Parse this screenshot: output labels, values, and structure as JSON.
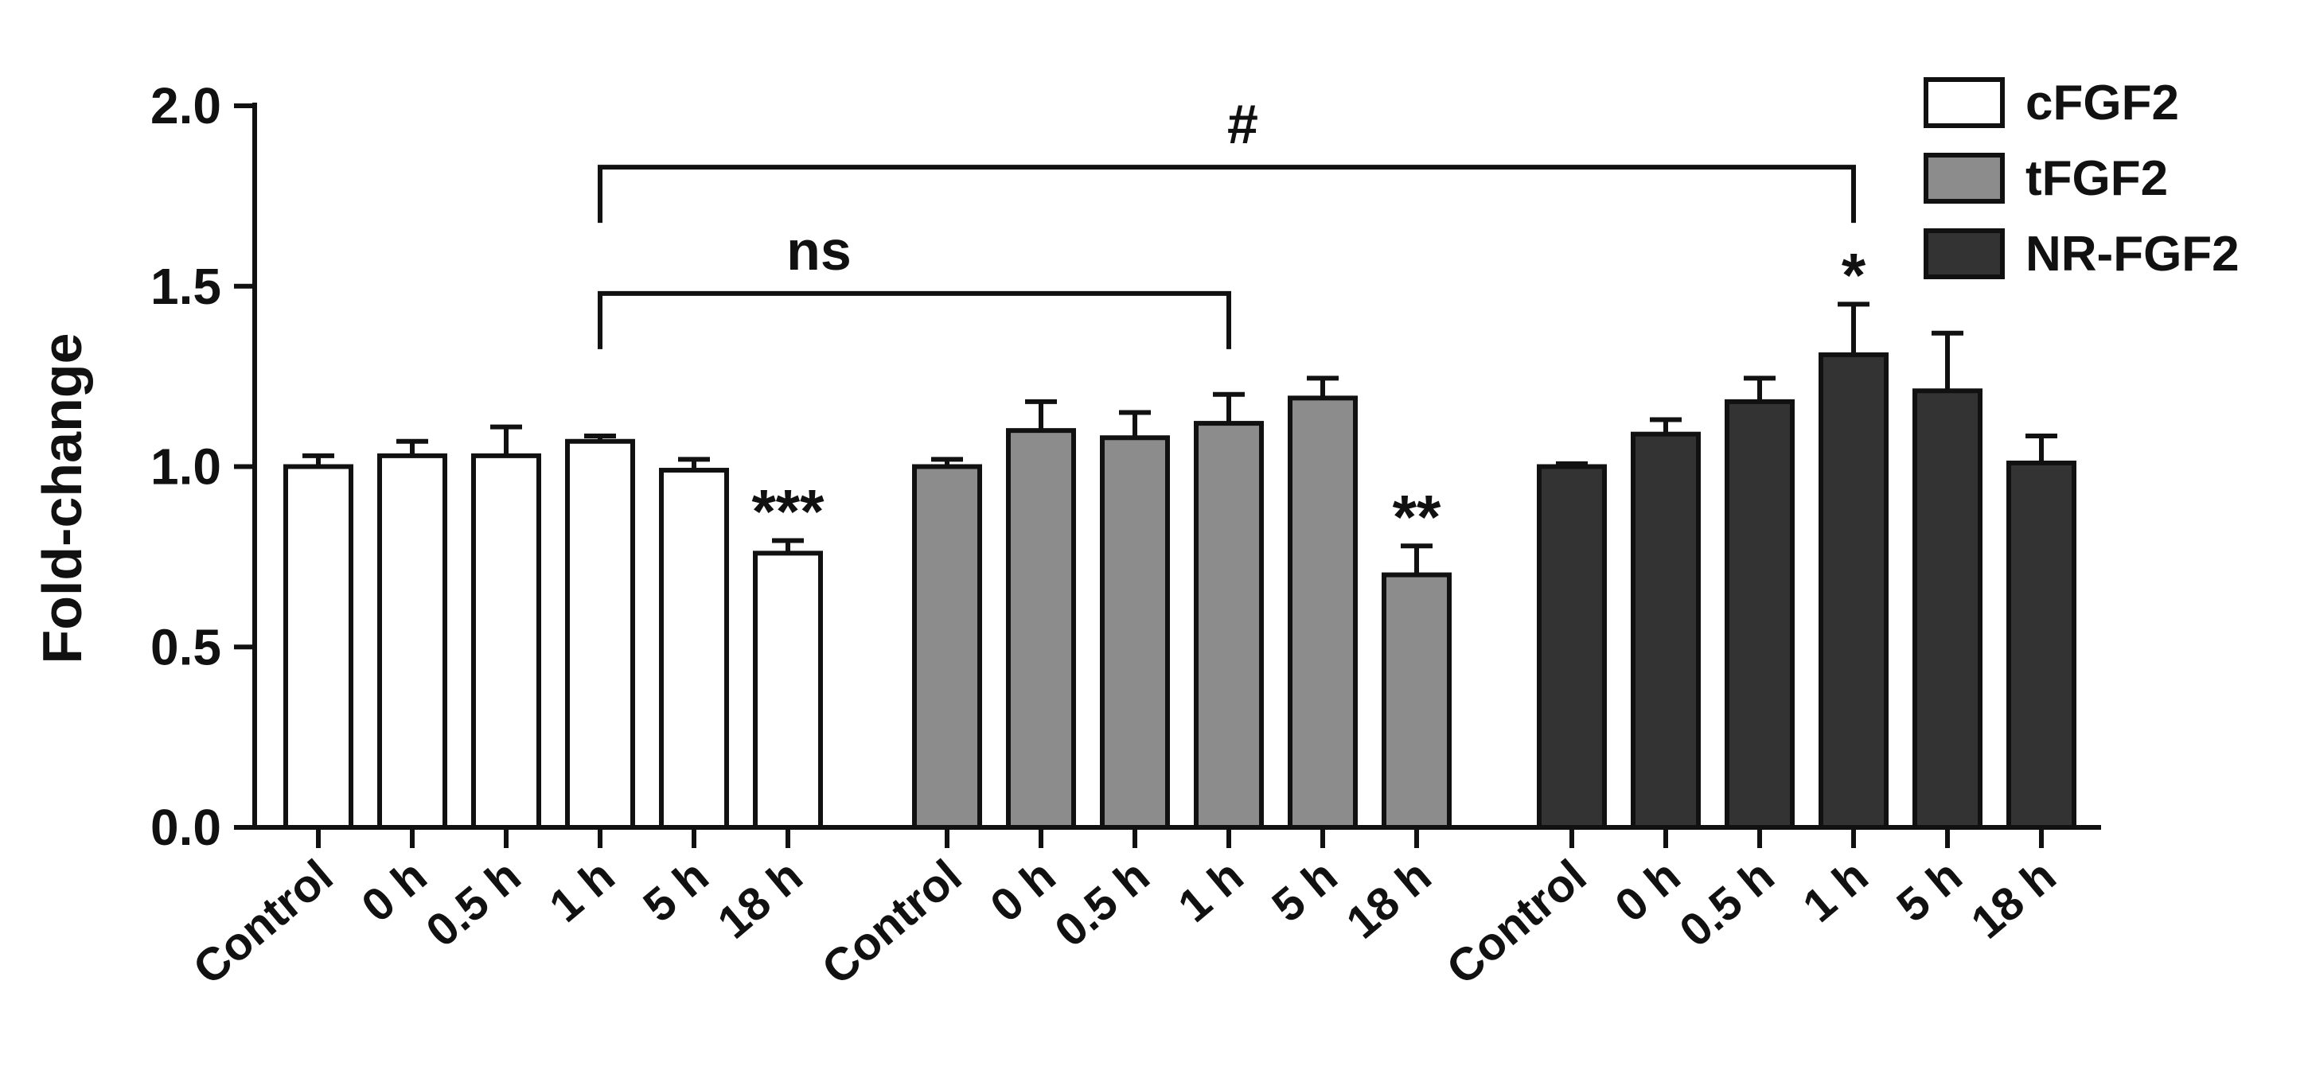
{
  "chart_data": {
    "type": "bar",
    "title": "",
    "xlabel": "",
    "ylabel": "Fold-change",
    "ylim": [
      0,
      2.0
    ],
    "yticks": [
      "0.0",
      "0.5",
      "1.0",
      "1.5",
      "2.0"
    ],
    "grid": false,
    "legend_position": "top-right",
    "series": [
      {
        "name": "cFGF2",
        "color": "#ffffff",
        "categories": [
          "Control",
          "0 h",
          "0.5 h",
          "1 h",
          "5 h",
          "18 h"
        ],
        "values": [
          1.0,
          1.03,
          1.03,
          1.07,
          0.99,
          0.76
        ],
        "errors": [
          0.03,
          0.04,
          0.08,
          0.015,
          0.03,
          0.035
        ]
      },
      {
        "name": "tFGF2",
        "color": "#8c8c8c",
        "categories": [
          "Control",
          "0 h",
          "0.5 h",
          "1 h",
          "5 h",
          "18 h"
        ],
        "values": [
          1.0,
          1.1,
          1.08,
          1.12,
          1.19,
          0.7
        ],
        "errors": [
          0.02,
          0.08,
          0.07,
          0.08,
          0.055,
          0.08
        ]
      },
      {
        "name": "NR-FGF2",
        "color": "#333333",
        "categories": [
          "Control",
          "0 h",
          "0.5 h",
          "1 h",
          "5 h",
          "18 h"
        ],
        "values": [
          1.0,
          1.09,
          1.18,
          1.31,
          1.21,
          1.01
        ],
        "errors": [
          0.008,
          0.04,
          0.065,
          0.14,
          0.16,
          0.075
        ]
      }
    ],
    "annotations": {
      "asterisks": [
        {
          "series": 0,
          "index": 5,
          "text": "***"
        },
        {
          "series": 1,
          "index": 5,
          "text": "**"
        },
        {
          "series": 2,
          "index": 3,
          "text": "*"
        }
      ],
      "brackets": [
        {
          "from": [
            0,
            3
          ],
          "to": [
            2,
            3
          ],
          "level": 1.83,
          "label": "#"
        },
        {
          "from": [
            0,
            3
          ],
          "to": [
            1,
            3
          ],
          "level": 1.48,
          "label": "ns"
        }
      ]
    }
  }
}
